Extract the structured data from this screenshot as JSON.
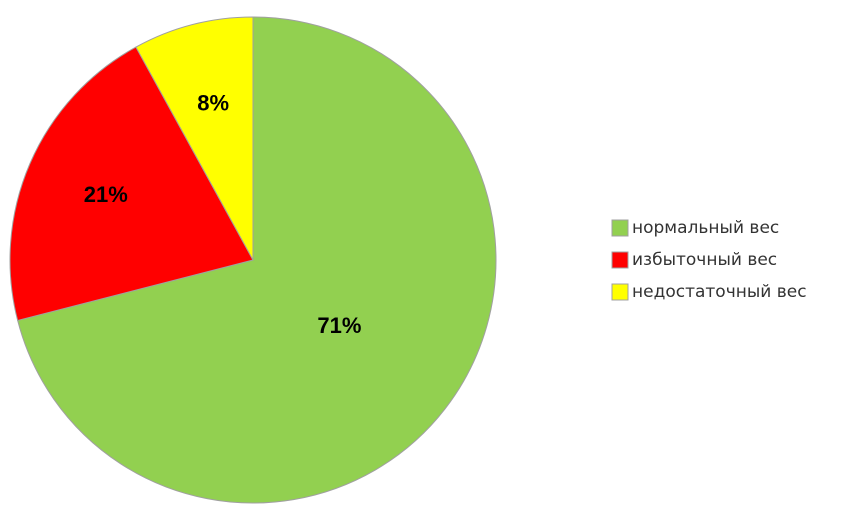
{
  "chart_data": {
    "type": "pie",
    "categories": [
      "нормальный вес",
      "избыточный вес",
      "недостаточный вес"
    ],
    "values": [
      71,
      21,
      8
    ],
    "value_labels": [
      "71%",
      "21%",
      "8%"
    ],
    "colors": [
      "#92d050",
      "#ff0000",
      "#ffff00"
    ],
    "legend": "right"
  }
}
